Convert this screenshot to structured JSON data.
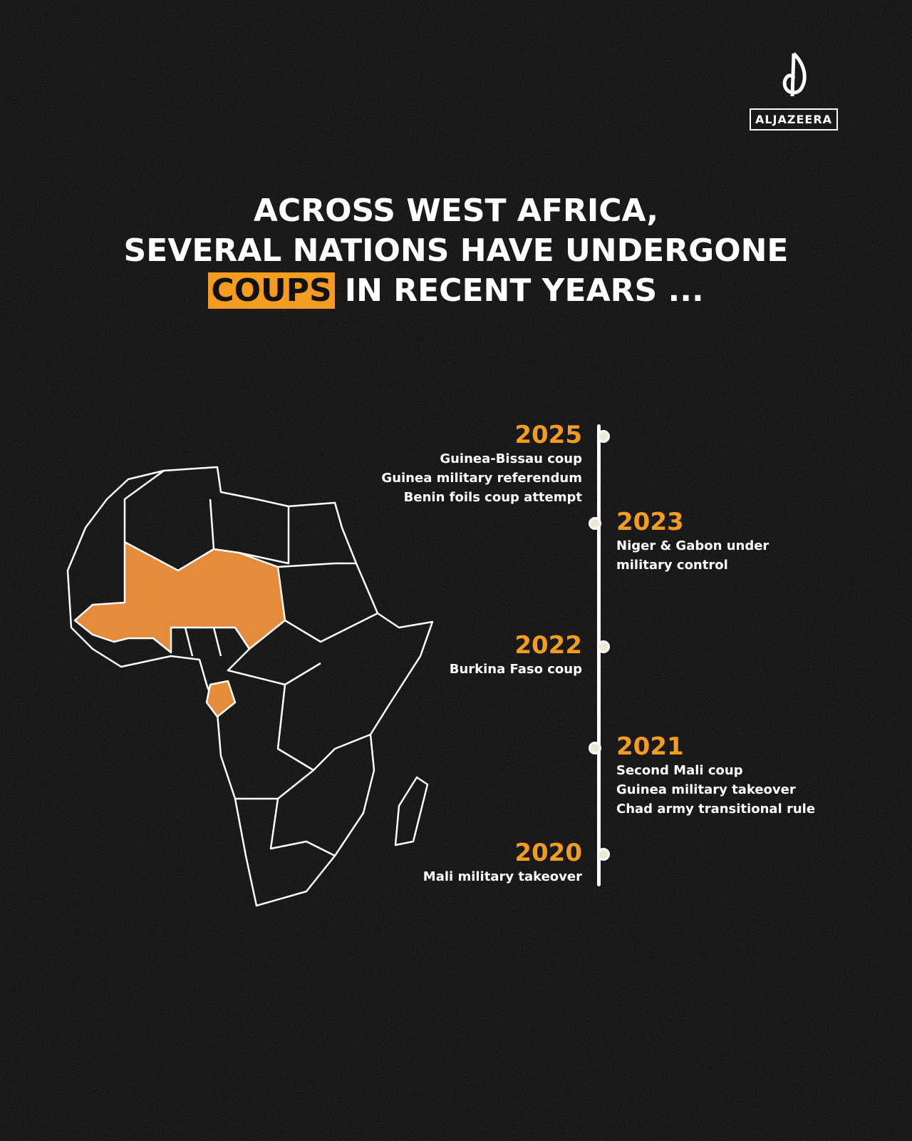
{
  "logo": {
    "text": "ALJAZEERA"
  },
  "title": {
    "lines": [
      "ACROSS WEST AFRICA,",
      "SEVERAL NATIONS HAVE UNDERGONE"
    ],
    "highlight": "COUPS",
    "rest": "IN RECENT YEARS ..."
  },
  "timeline": [
    {
      "year": "2025",
      "events": [
        "Guinea-Bissau coup",
        "Guinea military referendum",
        "Benin foils coup attempt"
      ]
    },
    {
      "year": "2023",
      "events": [
        "Niger & Gabon under",
        "military control"
      ]
    },
    {
      "year": "2022",
      "events": [
        "Burkina Faso coup"
      ]
    },
    {
      "year": "2021",
      "events": [
        "Second Mali coup",
        "Guinea military takeover",
        "Chad army transitional rule"
      ]
    },
    {
      "year": "2020",
      "events": [
        "Mali military takeover"
      ]
    }
  ]
}
